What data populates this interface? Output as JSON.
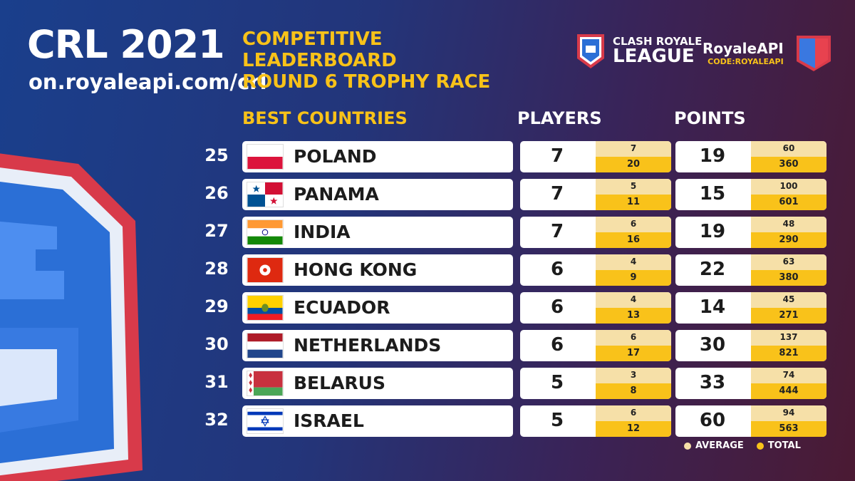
{
  "header": {
    "title": "CRL 2021",
    "url": "on.royaleapi.com/crl",
    "subtitle_lines": [
      "COMPETITIVE",
      "LEADERBOARD",
      "ROUND 6 TROPHY RACE"
    ]
  },
  "brand": {
    "crl_line1": "CLASH ROYALE",
    "crl_line2": "LEAGUE",
    "api_name": "RoyaleAPI",
    "api_code": "CODE:ROYALEAPI"
  },
  "columns": {
    "countries": "BEST COUNTRIES",
    "players": "PLAYERS",
    "points": "POINTS"
  },
  "rows": [
    {
      "rank": "25",
      "country": "POLAND",
      "flag": "poland",
      "players": "7",
      "players_avg": "7",
      "players_total": "20",
      "points": "19",
      "points_avg": "60",
      "points_total": "360"
    },
    {
      "rank": "26",
      "country": "PANAMA",
      "flag": "panama",
      "players": "7",
      "players_avg": "5",
      "players_total": "11",
      "points": "15",
      "points_avg": "100",
      "points_total": "601"
    },
    {
      "rank": "27",
      "country": "INDIA",
      "flag": "india",
      "players": "7",
      "players_avg": "6",
      "players_total": "16",
      "points": "19",
      "points_avg": "48",
      "points_total": "290"
    },
    {
      "rank": "28",
      "country": "HONG KONG",
      "flag": "hong-kong",
      "players": "6",
      "players_avg": "4",
      "players_total": "9",
      "points": "22",
      "points_avg": "63",
      "points_total": "380"
    },
    {
      "rank": "29",
      "country": "ECUADOR",
      "flag": "ecuador",
      "players": "6",
      "players_avg": "4",
      "players_total": "13",
      "points": "14",
      "points_avg": "45",
      "points_total": "271"
    },
    {
      "rank": "30",
      "country": "NETHERLANDS",
      "flag": "netherlands",
      "players": "6",
      "players_avg": "6",
      "players_total": "17",
      "points": "30",
      "points_avg": "137",
      "points_total": "821"
    },
    {
      "rank": "31",
      "country": "BELARUS",
      "flag": "belarus",
      "players": "5",
      "players_avg": "3",
      "players_total": "8",
      "points": "33",
      "points_avg": "74",
      "points_total": "444"
    },
    {
      "rank": "32",
      "country": "ISRAEL",
      "flag": "israel",
      "players": "5",
      "players_avg": "6",
      "players_total": "12",
      "points": "60",
      "points_avg": "94",
      "points_total": "563"
    }
  ],
  "legend": {
    "average": "AVERAGE",
    "total": "TOTAL"
  },
  "colors": {
    "accent_yellow": "#f8c219",
    "average_fill": "#f6e0a8",
    "total_fill": "#f9c21a"
  }
}
